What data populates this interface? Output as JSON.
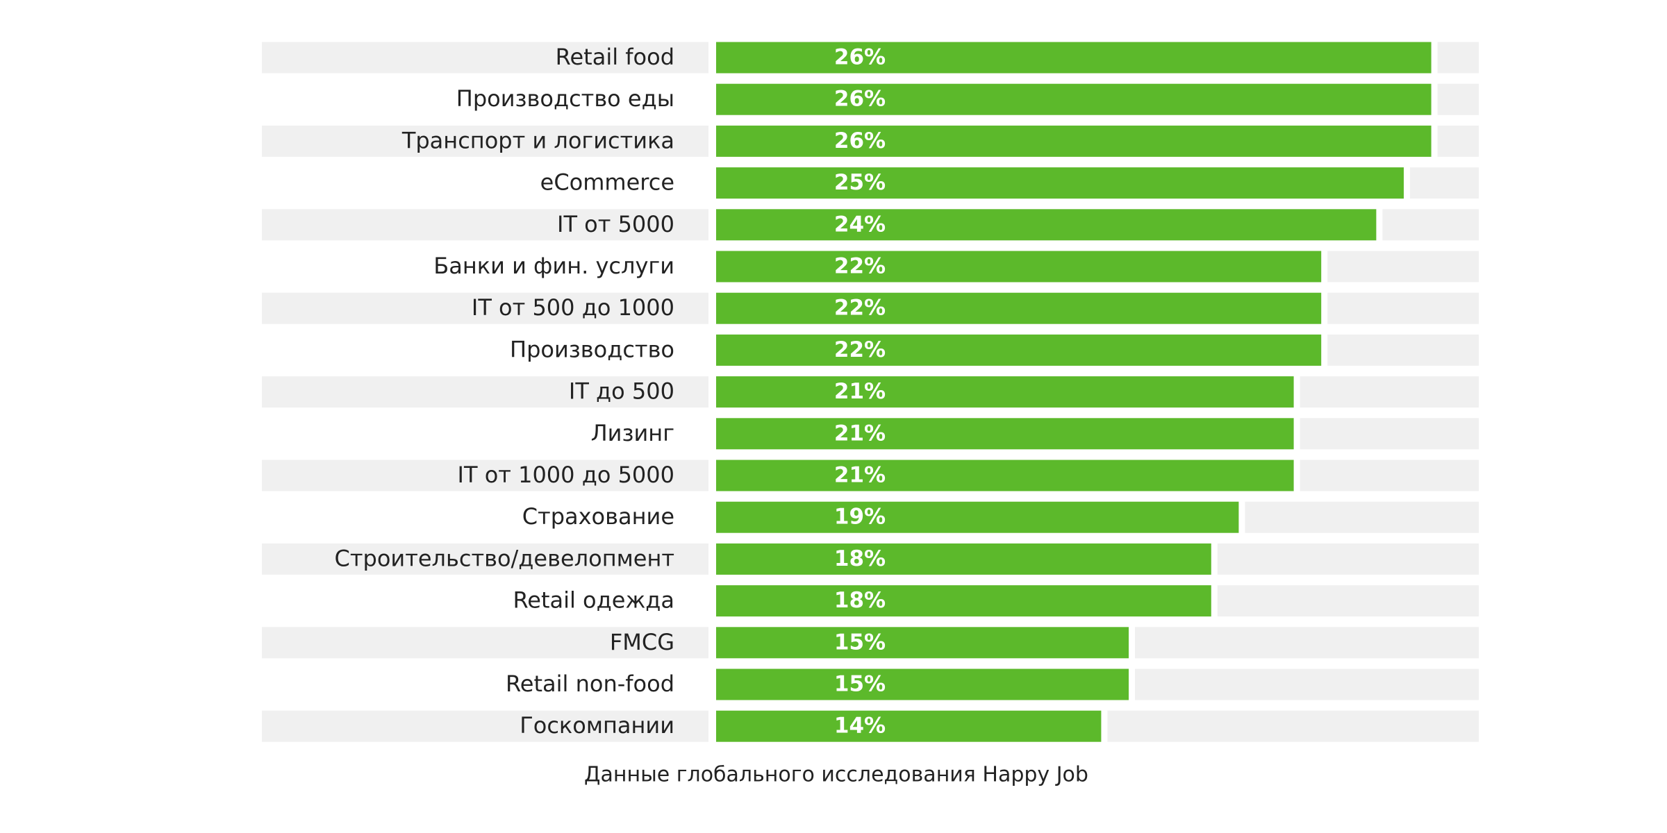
{
  "chart_data": {
    "type": "hbar",
    "categories": [
      "Retail food",
      "Производство еды",
      "Транспорт и логистика",
      "eCommerce",
      "IT от 5000",
      "Банки и фин. услуги",
      "IT от 500 до 1000",
      "Производство",
      "IT до 500",
      "Лизинг",
      "IT от 1000 до 5000",
      "Страхование",
      "Строительство/девелопмент",
      "Retail одежда",
      "FMCG",
      "Retail non-food",
      "Госкомпании"
    ],
    "values": [
      26,
      26,
      26,
      25,
      24,
      22,
      22,
      22,
      21,
      21,
      21,
      19,
      18,
      18,
      15,
      15,
      14
    ],
    "value_labels": [
      "26%",
      "26%",
      "26%",
      "25%",
      "24%",
      "22%",
      "22%",
      "22%",
      "21%",
      "21%",
      "21%",
      "19%",
      "18%",
      "18%",
      "15%",
      "15%",
      "14%"
    ],
    "color": "#5cb92b",
    "caption": "Данные глобального исследования Happy Job"
  }
}
